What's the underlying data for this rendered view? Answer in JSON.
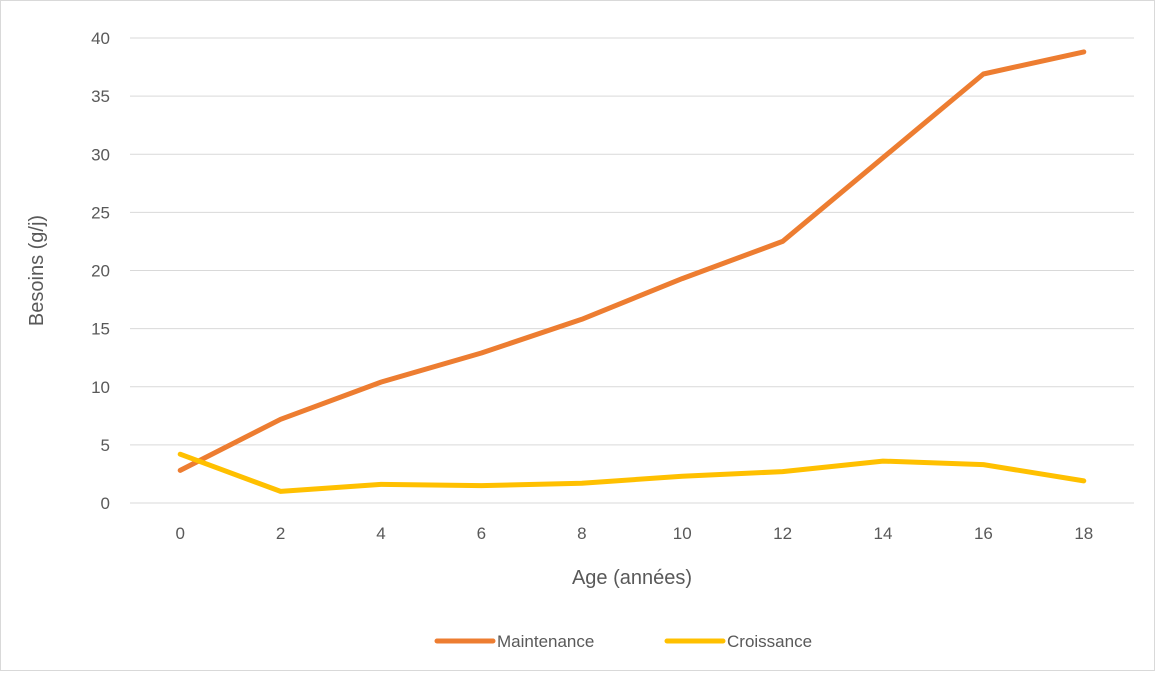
{
  "chart_data": {
    "type": "line",
    "title": "",
    "xlabel": "Age (années)",
    "ylabel": "Besoins (g/j)",
    "x": [
      0,
      2,
      4,
      6,
      8,
      10,
      12,
      14,
      16,
      18
    ],
    "yticks": [
      0,
      5,
      10,
      15,
      20,
      25,
      30,
      35,
      40
    ],
    "ylim": [
      0,
      40
    ],
    "grid": true,
    "legend_position": "bottom",
    "series": [
      {
        "name": "Maintenance",
        "color": "#ED7D31",
        "values": [
          2.8,
          7.2,
          10.4,
          12.9,
          15.8,
          19.3,
          22.5,
          29.7,
          36.9,
          38.8
        ]
      },
      {
        "name": "Croissance",
        "color": "#FFC000",
        "values": [
          4.2,
          1.0,
          1.6,
          1.5,
          1.7,
          2.3,
          2.7,
          3.6,
          3.3,
          1.9
        ]
      }
    ]
  }
}
